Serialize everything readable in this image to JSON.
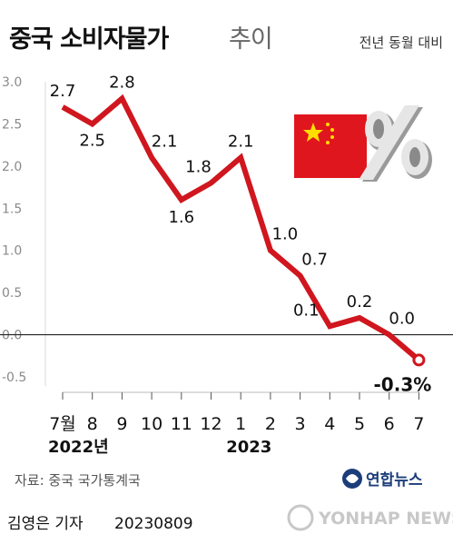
{
  "header": {
    "title": "중국 소비자물가",
    "title_suffix": "추이",
    "subtitle": "전년 동월 대비"
  },
  "chart_data": {
    "type": "line",
    "categories": [
      "7월",
      "8",
      "9",
      "10",
      "11",
      "12",
      "1",
      "2",
      "3",
      "4",
      "5",
      "6",
      "7"
    ],
    "year_labels": [
      {
        "text": "2022년",
        "category_index": 0
      },
      {
        "text": "2023",
        "category_index": 6
      }
    ],
    "series": [
      {
        "values": [
          2.7,
          2.5,
          2.8,
          2.1,
          1.6,
          1.8,
          2.1,
          1.0,
          0.7,
          0.1,
          0.2,
          0.0,
          -0.3
        ],
        "labels": [
          "2.7",
          "2.5",
          "2.8",
          "2.1",
          "1.6",
          "1.8",
          "2.1",
          "1.0",
          "0.7",
          "0.1",
          "0.2",
          "0.0",
          "-0.3%"
        ],
        "color": "#d0161e"
      }
    ],
    "yticks": [
      "3.0",
      "2.5",
      "2.0",
      "1.5",
      "1.0",
      "0.5",
      "0.0",
      "-0.5"
    ],
    "ylim": [
      -0.5,
      3.0
    ],
    "grid": false,
    "reference_line": 0
  },
  "decor": {
    "flag_icon": "china-flag-icon",
    "percent_icon": "percent-3d-icon",
    "flag_red": "#e0161e",
    "flag_yellow": "#ffde00"
  },
  "footer": {
    "source": "자료: 중국 국가통계국",
    "credit": "김영은 기자",
    "date": "20230809",
    "agency": "연합뉴스",
    "watermark": "YONHAP NEWS"
  }
}
